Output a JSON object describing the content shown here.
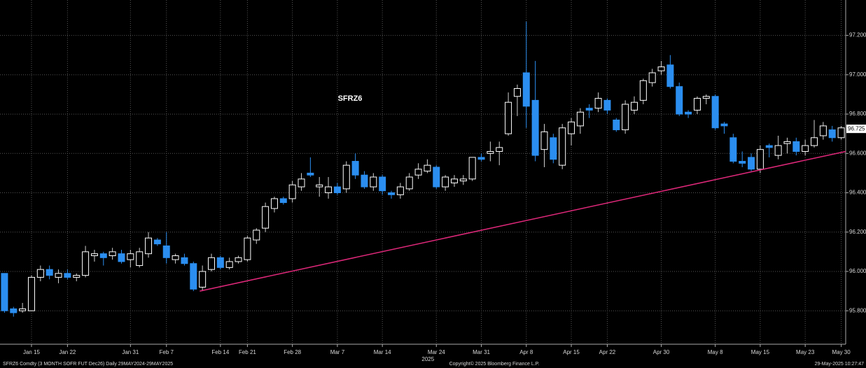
{
  "chart_data": {
    "type": "candlestick",
    "title": "SFRZ6",
    "categories": [
      null,
      null,
      null,
      "Jan 15",
      null,
      null,
      null,
      "Jan 22",
      null,
      null,
      null,
      null,
      null,
      null,
      "Jan 31",
      null,
      null,
      null,
      "Feb 7",
      null,
      null,
      null,
      null,
      null,
      "Feb 14",
      null,
      null,
      "Feb 21",
      null,
      null,
      null,
      null,
      "Feb 28",
      null,
      null,
      null,
      null,
      "Mar 7",
      null,
      null,
      null,
      null,
      "Mar 14",
      null,
      null,
      null,
      null,
      null,
      "Mar 24",
      null,
      null,
      null,
      null,
      "Mar 31",
      null,
      null,
      null,
      null,
      "Apr 8",
      null,
      null,
      null,
      null,
      "Apr 15",
      null,
      null,
      null,
      "Apr 22",
      null,
      null,
      null,
      null,
      null,
      "Apr 30",
      null,
      null,
      null,
      null,
      null,
      "May 8",
      null,
      null,
      null,
      null,
      "May 15",
      null,
      null,
      null,
      null,
      "May 23",
      null,
      null,
      null,
      "May 30"
    ],
    "open": [
      95.99,
      95.81,
      95.8,
      95.8,
      95.97,
      96.01,
      95.97,
      95.99,
      95.97,
      95.98,
      96.08,
      96.09,
      96.08,
      96.09,
      96.06,
      96.03,
      96.09,
      96.16,
      96.13,
      96.06,
      96.07,
      96.04,
      95.92,
      96.01,
      96.07,
      96.02,
      96.05,
      96.06,
      96.16,
      96.22,
      96.32,
      96.37,
      96.37,
      96.43,
      96.5,
      96.43,
      96.4,
      96.43,
      96.42,
      96.56,
      96.49,
      96.43,
      96.48,
      96.4,
      96.39,
      96.42,
      96.49,
      96.51,
      96.53,
      96.43,
      96.45,
      96.46,
      96.47,
      96.58,
      96.6,
      96.61,
      96.7,
      96.89,
      97.01,
      96.87,
      96.62,
      96.68,
      96.54,
      96.7,
      96.74,
      96.83,
      96.83,
      96.87,
      96.77,
      96.72,
      96.82,
      96.87,
      96.96,
      97.02,
      97.05,
      96.94,
      96.81,
      96.82,
      96.88,
      96.89,
      96.75,
      96.68,
      96.56,
      96.58,
      96.52,
      96.64,
      96.59,
      96.65,
      96.66,
      96.61,
      96.64,
      96.69,
      96.72,
      96.68
    ],
    "high": [
      95.99,
      95.82,
      95.84,
      95.98,
      96.03,
      96.03,
      96.01,
      96.01,
      95.99,
      96.13,
      96.11,
      96.1,
      96.12,
      96.11,
      96.11,
      96.12,
      96.2,
      96.17,
      96.2,
      96.09,
      96.09,
      96.05,
      96.03,
      96.09,
      96.08,
      96.07,
      96.08,
      96.18,
      96.22,
      96.35,
      96.38,
      96.38,
      96.46,
      96.5,
      96.58,
      96.48,
      96.48,
      96.45,
      96.56,
      96.6,
      96.51,
      96.5,
      96.49,
      96.41,
      96.45,
      96.5,
      96.55,
      96.57,
      96.54,
      96.49,
      96.49,
      96.49,
      96.58,
      96.6,
      96.66,
      96.66,
      96.91,
      96.95,
      97.27,
      97.07,
      96.75,
      96.7,
      96.75,
      96.78,
      96.83,
      96.85,
      96.91,
      96.88,
      96.78,
      96.87,
      96.89,
      96.98,
      97.03,
      97.07,
      97.1,
      96.96,
      96.82,
      96.89,
      96.9,
      96.9,
      96.76,
      96.7,
      96.61,
      96.6,
      96.64,
      96.65,
      96.69,
      96.68,
      96.68,
      96.67,
      96.77,
      96.76,
      96.74,
      96.74
    ],
    "low": [
      95.79,
      95.77,
      95.79,
      95.8,
      95.95,
      95.96,
      95.94,
      95.96,
      95.95,
      95.97,
      96.05,
      96.03,
      96.06,
      96.04,
      96.02,
      96.02,
      96.07,
      96.13,
      96.04,
      96.04,
      96.03,
      95.9,
      95.9,
      96.0,
      96.01,
      96.01,
      96.04,
      96.05,
      96.14,
      96.2,
      96.3,
      96.34,
      96.35,
      96.41,
      96.48,
      96.38,
      96.37,
      96.39,
      96.4,
      96.47,
      96.42,
      96.41,
      96.39,
      96.37,
      96.37,
      96.41,
      96.47,
      96.5,
      96.42,
      96.41,
      96.43,
      96.44,
      96.46,
      96.56,
      96.56,
      96.54,
      96.69,
      96.79,
      96.73,
      96.56,
      96.53,
      96.55,
      96.52,
      96.64,
      96.7,
      96.78,
      96.81,
      96.8,
      96.71,
      96.7,
      96.8,
      96.85,
      96.94,
      97.0,
      96.93,
      96.79,
      96.78,
      96.8,
      96.85,
      96.72,
      96.7,
      96.55,
      96.53,
      96.51,
      96.5,
      96.58,
      96.57,
      96.6,
      96.59,
      96.59,
      96.63,
      96.67,
      96.66,
      96.67
    ],
    "close": [
      95.8,
      95.79,
      95.81,
      95.97,
      96.01,
      95.98,
      95.99,
      95.97,
      95.98,
      96.1,
      96.09,
      96.07,
      96.1,
      96.05,
      96.09,
      96.1,
      96.17,
      96.14,
      96.07,
      96.08,
      96.04,
      95.91,
      96.0,
      96.07,
      96.02,
      96.05,
      96.07,
      96.17,
      96.21,
      96.33,
      96.37,
      96.35,
      96.44,
      96.47,
      96.49,
      96.44,
      96.43,
      96.4,
      96.54,
      96.49,
      96.43,
      96.48,
      96.41,
      96.39,
      96.43,
      96.48,
      96.52,
      96.54,
      96.43,
      96.48,
      96.47,
      96.47,
      96.58,
      96.57,
      96.61,
      96.63,
      96.86,
      96.93,
      96.84,
      96.59,
      96.71,
      96.57,
      96.73,
      96.76,
      96.81,
      96.82,
      96.88,
      96.82,
      96.72,
      96.85,
      96.86,
      96.97,
      97.01,
      97.04,
      96.94,
      96.8,
      96.8,
      96.88,
      96.89,
      96.73,
      96.74,
      96.56,
      96.55,
      96.52,
      96.62,
      96.63,
      96.64,
      96.66,
      96.61,
      96.64,
      96.68,
      96.74,
      96.68,
      96.73
    ],
    "up_color": "#ffffff",
    "down_color": "#2b8ef0",
    "ylim": [
      95.63,
      97.38
    ],
    "yticks": [
      {
        "value": 95.8,
        "label": "95.800"
      },
      {
        "value": 96.0,
        "label": "96.000"
      },
      {
        "value": 96.2,
        "label": "96.200"
      },
      {
        "value": 96.4,
        "label": "96.400"
      },
      {
        "value": 96.6,
        "label": "96.600"
      },
      {
        "value": 96.8,
        "label": "96.800"
      },
      {
        "value": 97.0,
        "label": "97.000"
      },
      {
        "value": 97.2,
        "label": "97.200"
      }
    ],
    "grid": true,
    "last_price": 96.725,
    "trendline": {
      "color": "#e0287a",
      "points": [
        [
          21.7,
          95.9
        ],
        [
          93.5,
          96.61
        ]
      ]
    },
    "year_label": "2025",
    "footer": {
      "left": "SFRZ6 Comdty (3 MONTH SOFR FUT Dec26) Daily 29MAY2024-29MAY2025",
      "center": "Copyright© 2025 Bloomberg Finance L.P.",
      "right": "29-May-2025 10:27:47"
    }
  }
}
